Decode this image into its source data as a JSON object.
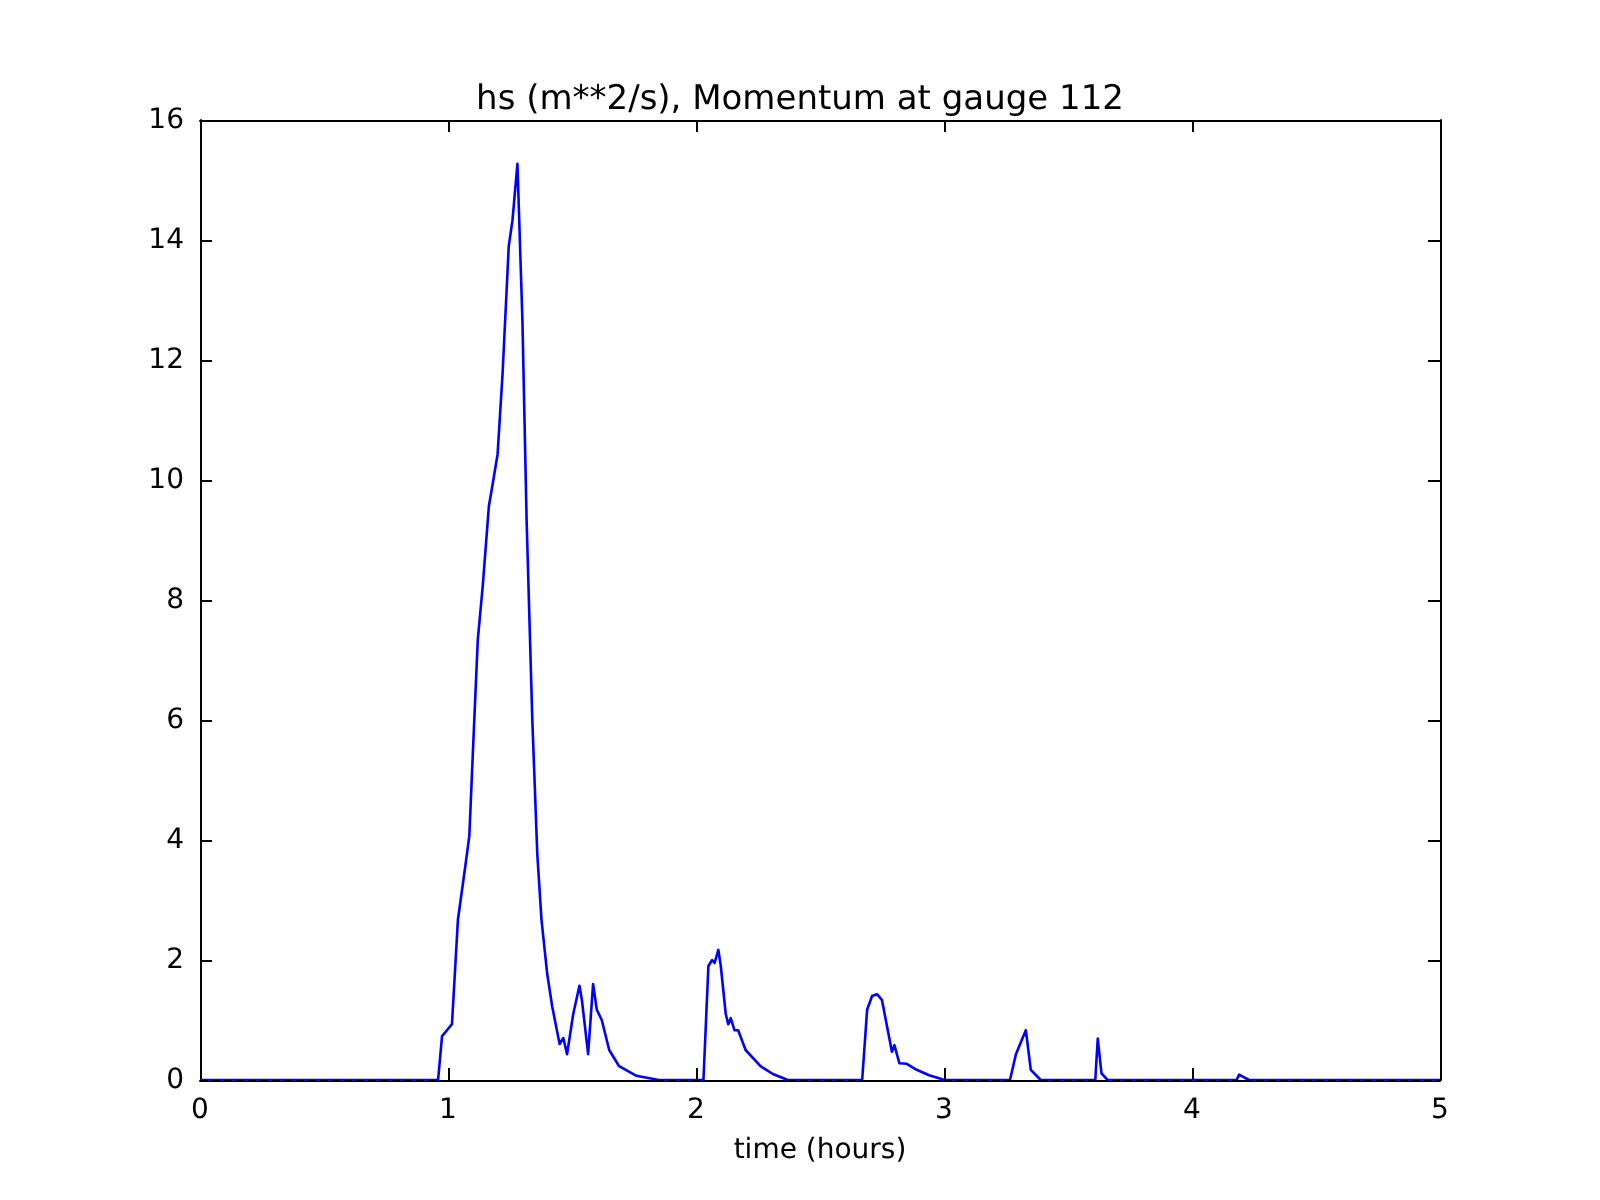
{
  "chart_data": {
    "type": "line",
    "title": "hs (m**2/s), Momentum at gauge 112",
    "xlabel": "time (hours)",
    "xlim": [
      0,
      5
    ],
    "xticks": [
      0,
      1,
      2,
      3,
      4,
      5
    ],
    "ylim": [
      0,
      16
    ],
    "yticks": [
      0,
      2,
      4,
      6,
      8,
      10,
      12,
      14,
      16
    ],
    "grid": false,
    "marker": "none",
    "line_style": "solid",
    "ref_lines": [
      {
        "axis": "y",
        "value": 0,
        "color": "#000000",
        "line_style": "dashed"
      }
    ],
    "series": [
      {
        "color": "#0000ff",
        "x": [
          0,
          0.5,
          0.96,
          0.976,
          1.0,
          1.016,
          1.04,
          1.07,
          1.086,
          1.1,
          1.12,
          1.14,
          1.165,
          1.18,
          1.2,
          1.22,
          1.245,
          1.26,
          1.28,
          1.3,
          1.317,
          1.34,
          1.36,
          1.377,
          1.4,
          1.42,
          1.45,
          1.465,
          1.48,
          1.505,
          1.53,
          1.54,
          1.565,
          1.585,
          1.6,
          1.62,
          1.65,
          1.69,
          1.76,
          1.85,
          2.03,
          2.05,
          2.065,
          2.075,
          2.09,
          2.1,
          2.12,
          2.13,
          2.14,
          2.155,
          2.17,
          2.2,
          2.26,
          2.31,
          2.37,
          2.67,
          2.69,
          2.71,
          2.73,
          2.75,
          2.77,
          2.79,
          2.8,
          2.82,
          2.85,
          2.89,
          2.94,
          2.98,
          3.0,
          3.266,
          3.29,
          3.33,
          3.35,
          3.39,
          3.61,
          3.62,
          3.635,
          3.66,
          4.18,
          4.19,
          4.23,
          4.5,
          5.0
        ],
        "values": [
          0,
          0,
          0,
          0.73,
          0.85,
          0.93,
          2.67,
          3.57,
          4.07,
          5.43,
          7.33,
          8.23,
          9.57,
          9.93,
          10.43,
          11.77,
          13.9,
          14.33,
          15.27,
          12.67,
          9.33,
          6.0,
          3.77,
          2.67,
          1.77,
          1.23,
          0.6,
          0.7,
          0.43,
          1.1,
          1.57,
          1.33,
          0.43,
          1.6,
          1.17,
          1.0,
          0.5,
          0.23,
          0.07,
          0,
          0,
          1.9,
          2.0,
          1.95,
          2.17,
          1.9,
          1.1,
          0.93,
          1.03,
          0.83,
          0.83,
          0.5,
          0.23,
          0.1,
          0,
          0,
          1.17,
          1.4,
          1.43,
          1.33,
          0.9,
          0.47,
          0.58,
          0.28,
          0.27,
          0.17,
          0.08,
          0.03,
          0,
          0,
          0.43,
          0.83,
          0.17,
          0,
          0,
          0.69,
          0.11,
          0,
          0,
          0.09,
          0,
          0,
          0
        ]
      }
    ]
  }
}
